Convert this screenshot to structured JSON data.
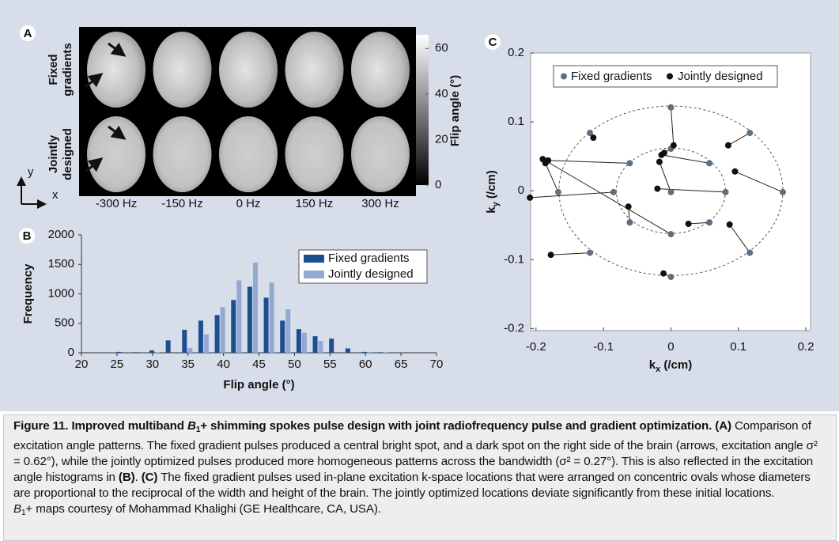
{
  "chart_data": [
    {
      "type": "image",
      "panel": "A",
      "row_labels": [
        [
          "Fixed",
          "gradients"
        ],
        [
          "Jointly",
          "designed"
        ]
      ],
      "col_labels": [
        "-300 Hz",
        "-150 Hz",
        "0 Hz",
        "150 Hz",
        "300 Hz"
      ],
      "axis_labels": {
        "x": "x",
        "y": "y"
      },
      "colorbar_label": "Flip angle (°)",
      "ylim": [
        0,
        66
      ],
      "yticks": [
        0,
        20,
        40,
        60
      ]
    },
    {
      "type": "bar",
      "panel": "B",
      "x": [
        25.7,
        28,
        30.3,
        32.6,
        34.9,
        37.2,
        39.5,
        41.8,
        44.1,
        46.4,
        48.7,
        51,
        53.3,
        55.6,
        57.9,
        60.2,
        62.5
      ],
      "series": [
        {
          "name": "Fixed gradients",
          "color": "#1c4f8f",
          "values": [
            15,
            10,
            40,
            210,
            390,
            545,
            640,
            895,
            1120,
            935,
            545,
            400,
            280,
            240,
            75,
            15,
            10
          ]
        },
        {
          "name": "Jointly designed",
          "color": "#93a9d4",
          "values": [
            0,
            0,
            10,
            0,
            80,
            310,
            775,
            1230,
            1530,
            1190,
            740,
            340,
            200,
            0,
            0,
            15,
            5
          ]
        }
      ],
      "xlabel": "Flip angle (°)",
      "ylabel": "Frequency",
      "xlim": [
        20,
        70
      ],
      "ylim": [
        0,
        2000
      ],
      "xticks": [
        20,
        25,
        30,
        35,
        40,
        45,
        50,
        55,
        60,
        65,
        70
      ],
      "yticks": [
        0,
        500,
        1000,
        1500,
        2000
      ],
      "legend": "top-right"
    },
    {
      "type": "scatter",
      "panel": "C",
      "xlabel": [
        "k",
        "x",
        " (/cm)"
      ],
      "ylabel": [
        "k",
        "y",
        " (/cm)"
      ],
      "xlim": [
        -0.208,
        0.207
      ],
      "ylim": [
        -0.203,
        0.2
      ],
      "xticks": [
        -0.2,
        -0.1,
        0,
        0.1,
        0.2
      ],
      "yticks": [
        -0.2,
        -0.1,
        0,
        0.1,
        0.2
      ],
      "series": [
        {
          "name": "Fixed gradients",
          "color": "#5d7082",
          "x": [
            0,
            -0.12,
            0.117,
            0,
            -0.061,
            0.057,
            -0.167,
            -0.085,
            0,
            0.081,
            0.166,
            -0.061,
            0.057,
            0,
            -0.12,
            0.117,
            0
          ],
          "y": [
            0.121,
            0.084,
            0.084,
            0.061,
            0.04,
            0.04,
            -0.002,
            -0.002,
            -0.002,
            -0.002,
            -0.002,
            -0.046,
            -0.046,
            -0.063,
            -0.09,
            -0.09,
            -0.125
          ]
        },
        {
          "name": "Jointly designed",
          "color": "#111111",
          "x": [
            0.004,
            -0.115,
            0.085,
            -0.01,
            -0.182,
            -0.014,
            -0.186,
            -0.209,
            -0.017,
            -0.02,
            0.095,
            -0.063,
            0.026,
            -0.19,
            -0.178,
            0.087,
            -0.011
          ],
          "y": [
            0.066,
            0.077,
            0.066,
            0.055,
            0.044,
            0.052,
            0.04,
            -0.01,
            0.042,
            0.003,
            0.028,
            -0.023,
            -0.048,
            0.046,
            -0.093,
            -0.049,
            -0.12
          ]
        }
      ],
      "ovals": [
        {
          "rx": 0.166,
          "ry": 0.123
        },
        {
          "rx": 0.081,
          "ry": 0.062
        }
      ],
      "legend": "top"
    }
  ],
  "caption": [
    [
      {
        "text": "Figure 11. Improved multiband ",
        "style": "b"
      },
      {
        "text": "B",
        "style": "bi"
      },
      {
        "text": "1",
        "style": "bsub"
      },
      {
        "text": "+ shimming spokes pulse design with joint radiofrequency pulse and gradient optimization. (A)",
        "style": "b"
      },
      {
        "text": " Comparison of excitation angle patterns. The fixed gradient pulses produced a central bright spot, and a dark spot on the right side of the brain (arrows, excitation angle σ² = 0.62°), while the jointly optimized pulses produced more homogeneous patterns across the bandwidth (σ² = 0.27°). This is also reflected in the excitation angle histograms in ",
        "style": "n"
      },
      {
        "text": "(B)",
        "style": "b"
      },
      {
        "text": ". ",
        "style": "n"
      },
      {
        "text": "(C)",
        "style": "b"
      },
      {
        "text": " The fixed gradient pulses used in-plane excitation k-space locations that were arranged on concentric ovals whose diameters are proportional to the reciprocal of the width and height of the brain. The jointly optimized locations deviate significantly from these initial locations.",
        "style": "n"
      }
    ],
    [
      {
        "text": "B",
        "style": "i"
      },
      {
        "text": "1",
        "style": "sub"
      },
      {
        "text": "+ maps courtesy of Mohammad Khalighi (GE Healthcare, CA, USA).",
        "style": "n"
      }
    ]
  ]
}
